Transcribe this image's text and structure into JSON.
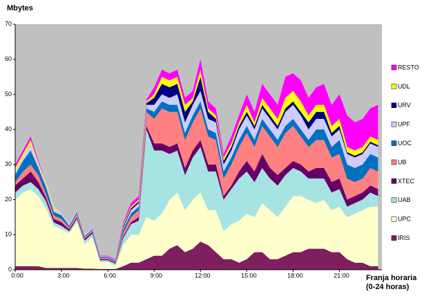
{
  "chart_data": {
    "type": "stacked_area",
    "title": "Mbytes",
    "xlabel": [
      "Franja horaria",
      "(0-24 horas)"
    ],
    "x": [
      0,
      0.5,
      1,
      1.5,
      2,
      2.5,
      3,
      3.5,
      4,
      4.5,
      5,
      5.5,
      6,
      6.5,
      7,
      7.5,
      8,
      8.5,
      9,
      9.5,
      10,
      10.5,
      11,
      11.5,
      12,
      12.5,
      13,
      13.5,
      14,
      14.5,
      15,
      15.5,
      16,
      16.5,
      17,
      17.5,
      18,
      18.5,
      19,
      19.5,
      20,
      20.5,
      21,
      21.5,
      22,
      22.5,
      23,
      23.5
    ],
    "xlim": [
      0,
      23.75
    ],
    "xticks": [
      {
        "value": 0,
        "label": "0:00"
      },
      {
        "value": 3,
        "label": "3:00"
      },
      {
        "value": 6,
        "label": "6:00"
      },
      {
        "value": 9,
        "label": "9:00"
      },
      {
        "value": 12,
        "label": "12:00"
      },
      {
        "value": 15,
        "label": "15:00"
      },
      {
        "value": 18,
        "label": "18:00"
      },
      {
        "value": 21,
        "label": "21:00"
      }
    ],
    "ylim": [
      0,
      70
    ],
    "yticks": [
      0,
      10,
      20,
      30,
      40,
      50,
      60,
      70
    ],
    "background": "#c0c0c0",
    "series": [
      {
        "name": "IRIS",
        "color": "#7f1f5f",
        "values": [
          1,
          1,
          1,
          1,
          0.5,
          0.5,
          0.5,
          0.5,
          0.5,
          0.3,
          0.3,
          0.2,
          0.2,
          0.2,
          1,
          2,
          2,
          3,
          4,
          4,
          6,
          7,
          5,
          6,
          8,
          7,
          5,
          3,
          3,
          2,
          3,
          5,
          5,
          3,
          3,
          4,
          5,
          5,
          6,
          6,
          6,
          5,
          5,
          3,
          2,
          2,
          1,
          1
        ]
      },
      {
        "name": "UPC",
        "color": "#ffffcc",
        "values": [
          19,
          21,
          22,
          20,
          17,
          12,
          11,
          10,
          13,
          7,
          9,
          2,
          2,
          1,
          6,
          8,
          8,
          12,
          10,
          12,
          14,
          15,
          12,
          14,
          14,
          10,
          12,
          8,
          10,
          12,
          13,
          10,
          14,
          14,
          12,
          14,
          16,
          16,
          14,
          13,
          14,
          12,
          13,
          12,
          14,
          15,
          17,
          17
        ]
      },
      {
        "name": "UAB",
        "color": "#a6e3e3",
        "values": [
          2,
          2,
          2,
          2,
          2,
          1,
          1,
          0.5,
          1,
          1,
          1,
          0.5,
          0.5,
          0.5,
          2,
          3,
          4,
          25,
          20,
          18,
          13,
          12,
          10,
          12,
          13,
          11,
          11,
          9,
          10,
          12,
          12,
          10,
          10,
          9,
          9,
          9,
          8,
          7,
          6,
          7,
          6,
          5,
          5,
          3,
          3,
          3,
          4,
          3
        ]
      },
      {
        "name": "XTEC",
        "color": "#660066",
        "values": [
          2,
          2,
          3,
          2,
          1,
          1,
          1,
          0.5,
          0.5,
          0.5,
          0.5,
          0.3,
          0.3,
          0.3,
          0.5,
          0.5,
          1,
          1,
          2,
          2,
          2,
          2,
          2,
          2,
          2,
          2,
          2,
          1,
          1,
          2,
          3,
          3,
          4,
          3,
          3,
          2,
          2,
          2,
          2,
          3,
          3,
          3,
          3,
          2,
          2,
          2,
          2,
          2
        ]
      },
      {
        "name": "UB",
        "color": "#ff8080",
        "values": [
          1,
          2,
          2,
          2,
          1,
          1,
          1,
          0.5,
          1,
          0.5,
          0.5,
          0.3,
          0.3,
          0.3,
          1,
          1.5,
          2,
          4,
          7,
          10,
          10,
          9,
          8,
          8,
          9,
          8,
          7,
          5,
          6,
          7,
          8,
          7,
          8,
          9,
          8,
          10,
          10,
          8,
          7,
          8,
          8,
          7,
          7,
          6,
          4,
          4,
          5,
          5
        ]
      },
      {
        "name": "UOC",
        "color": "#0070c0",
        "values": [
          2,
          3,
          4,
          2,
          2,
          1,
          1,
          0.5,
          0.5,
          0.3,
          0.3,
          0.3,
          0.3,
          0.3,
          1,
          1,
          1,
          1,
          2,
          2,
          2,
          2,
          2,
          2,
          2,
          2,
          2,
          2,
          2,
          2,
          2,
          2,
          2,
          2,
          2,
          2,
          2,
          2,
          2,
          3,
          3,
          3,
          4,
          4,
          4,
          4,
          4,
          4
        ]
      },
      {
        "name": "UPF",
        "color": "#ccccff",
        "values": [
          1,
          1,
          2,
          1,
          1,
          1,
          0.5,
          0.5,
          0.5,
          0.4,
          0.4,
          0.2,
          0.2,
          0.2,
          0.5,
          1,
          1,
          1,
          2,
          2,
          2,
          3,
          3,
          3,
          3,
          3,
          3,
          2,
          2,
          3,
          3,
          3,
          3,
          3,
          3,
          4,
          4,
          4,
          3,
          3,
          3,
          3,
          3,
          3,
          3,
          3,
          3,
          3
        ]
      },
      {
        "name": "URV",
        "color": "#000080",
        "values": [
          0,
          0,
          0,
          0,
          0,
          0,
          0,
          0,
          0,
          0,
          0,
          0,
          0,
          0,
          0.5,
          0.5,
          0.5,
          0.5,
          2,
          3,
          3,
          3,
          3,
          1,
          4,
          2,
          1,
          1,
          1,
          1,
          1,
          1,
          1,
          1,
          1,
          1,
          1,
          1,
          2,
          2,
          2,
          1,
          1,
          0.5,
          0.5,
          0.5,
          0.5,
          0.5
        ]
      },
      {
        "name": "UDL",
        "color": "#ffff00",
        "values": [
          1,
          1,
          1,
          0.5,
          0.5,
          0.5,
          0,
          0,
          0,
          0,
          0,
          0,
          0,
          0,
          0.5,
          0.5,
          0.5,
          0.5,
          1,
          2,
          2,
          2,
          2,
          1,
          2,
          1,
          1,
          1,
          1,
          1,
          2,
          1,
          2,
          2,
          2,
          3,
          3,
          3,
          2,
          2,
          2,
          2,
          2,
          1.5,
          1.5,
          1.5,
          1.5,
          1.5
        ]
      },
      {
        "name": "RESTO",
        "color": "#ff00ff",
        "values": [
          1,
          1,
          1,
          0.5,
          0,
          0,
          0,
          0,
          0,
          0,
          0,
          0.2,
          0.2,
          0.2,
          0.5,
          1,
          1,
          0.5,
          2,
          2,
          2,
          2,
          2,
          2,
          3,
          2,
          2,
          1,
          2,
          2,
          3,
          3,
          4,
          4,
          4,
          6,
          5,
          6,
          5,
          5,
          6,
          6,
          7,
          9,
          8,
          8,
          8,
          10
        ]
      }
    ]
  }
}
